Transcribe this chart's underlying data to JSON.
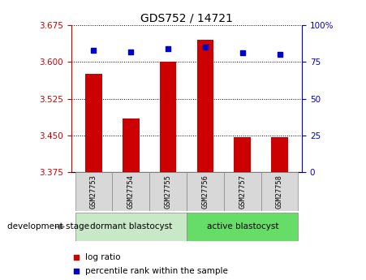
{
  "title": "GDS752 / 14721",
  "samples": [
    "GSM27753",
    "GSM27754",
    "GSM27755",
    "GSM27756",
    "GSM27757",
    "GSM27758"
  ],
  "log_ratio": [
    3.575,
    3.485,
    3.6,
    3.645,
    3.447,
    3.447
  ],
  "percentile_rank": [
    83,
    82,
    84,
    85,
    81,
    80
  ],
  "ylim_left": [
    3.375,
    3.675
  ],
  "ylim_right": [
    0,
    100
  ],
  "yticks_left": [
    3.375,
    3.45,
    3.525,
    3.6,
    3.675
  ],
  "yticks_right": [
    0,
    25,
    50,
    75,
    100
  ],
  "ytick_labels_right": [
    "0",
    "25",
    "50",
    "75",
    "100%"
  ],
  "baseline": 3.375,
  "bar_color": "#cc0000",
  "dot_color": "#0000cc",
  "group1_label": "dormant blastocyst",
  "group2_label": "active blastocyst",
  "group1_color": "#c8e8c8",
  "group2_color": "#66dd66",
  "group1_indices": [
    0,
    1,
    2
  ],
  "group2_indices": [
    3,
    4,
    5
  ],
  "dev_stage_label": "development stage",
  "legend1": "log ratio",
  "legend2": "percentile rank within the sample",
  "bar_width": 0.45,
  "title_fontsize": 10,
  "tick_fontsize": 7.5,
  "label_fontsize": 8
}
